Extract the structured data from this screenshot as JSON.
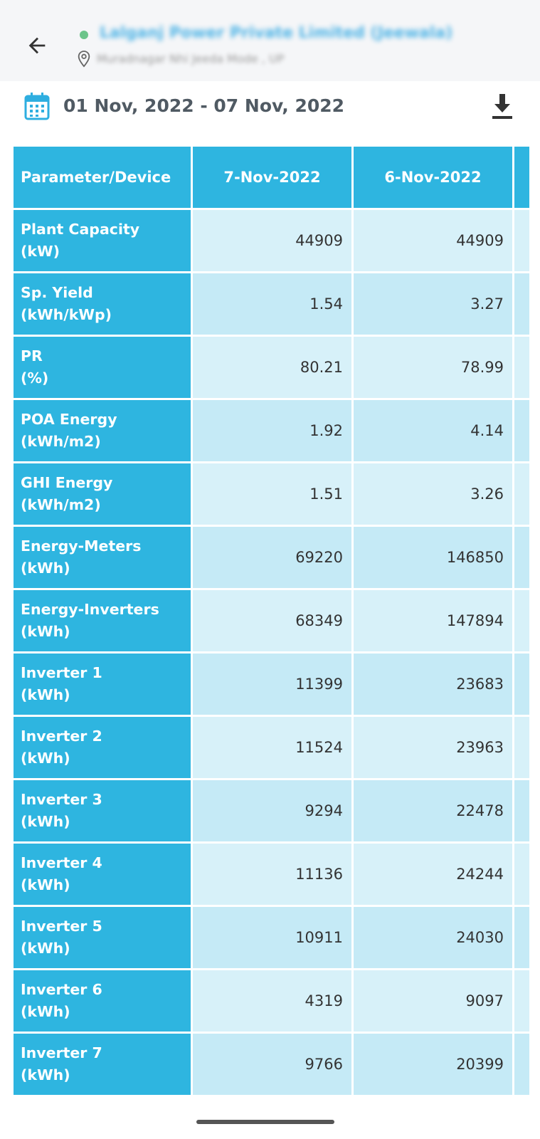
{
  "header": {
    "plant_name": "Lalganj Power Private Limited (Jeewala)",
    "plant_location": "Muradnagar Nhi Jeeda Mode , UP"
  },
  "date_range": "01 Nov, 2022 - 07 Nov, 2022",
  "table": {
    "columns": [
      "Parameter/Device",
      "7-Nov-2022",
      "6-Nov-2022",
      ""
    ],
    "rows": [
      {
        "label": "Plant Capacity",
        "unit": "(kW)",
        "values": [
          "44909",
          "44909",
          ""
        ]
      },
      {
        "label": "Sp. Yield",
        "unit": "(kWh/kWp)",
        "values": [
          "1.54",
          "3.27",
          ""
        ]
      },
      {
        "label": "PR",
        "unit": "(%)",
        "values": [
          "80.21",
          "78.99",
          ""
        ]
      },
      {
        "label": "POA Energy",
        "unit": "(kWh/m2)",
        "values": [
          "1.92",
          "4.14",
          ""
        ]
      },
      {
        "label": "GHI Energy",
        "unit": "(kWh/m2)",
        "values": [
          "1.51",
          "3.26",
          ""
        ]
      },
      {
        "label": "Energy-Meters",
        "unit": "(kWh)",
        "values": [
          "69220",
          "146850",
          ""
        ]
      },
      {
        "label": "Energy-Inverters",
        "unit": "(kWh)",
        "values": [
          "68349",
          "147894",
          ""
        ]
      },
      {
        "label": "Inverter 1",
        "unit": "(kWh)",
        "values": [
          "11399",
          "23683",
          ""
        ]
      },
      {
        "label": "Inverter 2",
        "unit": "(kWh)",
        "values": [
          "11524",
          "23963",
          ""
        ]
      },
      {
        "label": "Inverter 3",
        "unit": "(kWh)",
        "values": [
          "9294",
          "22478",
          ""
        ]
      },
      {
        "label": "Inverter 4",
        "unit": "(kWh)",
        "values": [
          "11136",
          "24244",
          ""
        ]
      },
      {
        "label": "Inverter 5",
        "unit": "(kWh)",
        "values": [
          "10911",
          "24030",
          ""
        ]
      },
      {
        "label": "Inverter 6",
        "unit": "(kWh)",
        "values": [
          "4319",
          "9097",
          ""
        ]
      },
      {
        "label": "Inverter 7",
        "unit": "(kWh)",
        "values": [
          "9766",
          "20399",
          ""
        ]
      }
    ]
  }
}
